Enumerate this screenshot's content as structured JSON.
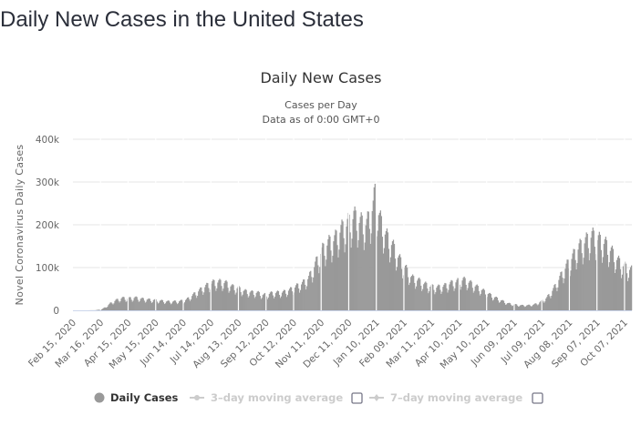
{
  "page": {
    "title": "Daily New Cases in the United States"
  },
  "chart_data": {
    "type": "bar",
    "title": "Daily New Cases",
    "subtitle_lines": [
      "Cases per Day",
      "Data as of 0:00 GMT+0"
    ],
    "xlabel": "",
    "ylabel": "Novel Coronavirus Daily Cases",
    "ylim": [
      0,
      400000
    ],
    "y_ticks": [
      {
        "value": 0,
        "label": "0"
      },
      {
        "value": 100000,
        "label": "100k"
      },
      {
        "value": 200000,
        "label": "200k"
      },
      {
        "value": 300000,
        "label": "300k"
      },
      {
        "value": 400000,
        "label": "400k"
      }
    ],
    "x_start": "2020-02-15",
    "x_end": "2021-10-14",
    "x_ticks": [
      {
        "date": "2020-02-15",
        "label": "Feb 15, 2020"
      },
      {
        "date": "2020-03-16",
        "label": "Mar 16, 2020"
      },
      {
        "date": "2020-04-15",
        "label": "Apr 15, 2020"
      },
      {
        "date": "2020-05-15",
        "label": "May 15, 2020"
      },
      {
        "date": "2020-06-14",
        "label": "Jun 14, 2020"
      },
      {
        "date": "2020-07-14",
        "label": "Jul 14, 2020"
      },
      {
        "date": "2020-08-13",
        "label": "Aug 13, 2020"
      },
      {
        "date": "2020-09-12",
        "label": "Sep 12, 2020"
      },
      {
        "date": "2020-10-12",
        "label": "Oct 12, 2020"
      },
      {
        "date": "2020-11-11",
        "label": "Nov 11, 2020"
      },
      {
        "date": "2020-12-11",
        "label": "Dec 11, 2020"
      },
      {
        "date": "2021-01-10",
        "label": "Jan 10, 2021"
      },
      {
        "date": "2021-02-09",
        "label": "Feb 09, 2021"
      },
      {
        "date": "2021-03-11",
        "label": "Mar 11, 2021"
      },
      {
        "date": "2021-04-10",
        "label": "Apr 10, 2021"
      },
      {
        "date": "2021-05-10",
        "label": "May 10, 2021"
      },
      {
        "date": "2021-06-09",
        "label": "Jun 09, 2021"
      },
      {
        "date": "2021-07-09",
        "label": "Jul 09, 2021"
      },
      {
        "date": "2021-08-08",
        "label": "Aug 08, 2021"
      },
      {
        "date": "2021-09-07",
        "label": "Sep 07, 2021"
      },
      {
        "date": "2021-10-07",
        "label": "Oct 07, 2021"
      }
    ],
    "grid": true,
    "bar_color": "#999999",
    "series": [
      {
        "name": "Daily Cases",
        "visible": true,
        "sampling": "weekly approximate daily-case level (peak of week)",
        "points": [
          [
            "2020-02-15",
            0
          ],
          [
            "2020-03-01",
            20
          ],
          [
            "2020-03-10",
            300
          ],
          [
            "2020-03-17",
            3000
          ],
          [
            "2020-03-22",
            10000
          ],
          [
            "2020-03-26",
            18000
          ],
          [
            "2020-04-01",
            26000
          ],
          [
            "2020-04-08",
            32000
          ],
          [
            "2020-04-15",
            31000
          ],
          [
            "2020-04-22",
            33000
          ],
          [
            "2020-04-29",
            30000
          ],
          [
            "2020-05-06",
            28000
          ],
          [
            "2020-05-13",
            27000
          ],
          [
            "2020-05-20",
            25000
          ],
          [
            "2020-05-27",
            23000
          ],
          [
            "2020-06-03",
            23000
          ],
          [
            "2020-06-10",
            24000
          ],
          [
            "2020-06-17",
            28000
          ],
          [
            "2020-06-24",
            40000
          ],
          [
            "2020-07-01",
            52000
          ],
          [
            "2020-07-08",
            63000
          ],
          [
            "2020-07-15",
            72000
          ],
          [
            "2020-07-22",
            74000
          ],
          [
            "2020-07-29",
            72000
          ],
          [
            "2020-08-05",
            62000
          ],
          [
            "2020-08-12",
            58000
          ],
          [
            "2020-08-19",
            50000
          ],
          [
            "2020-08-26",
            47000
          ],
          [
            "2020-09-02",
            46000
          ],
          [
            "2020-09-09",
            40000
          ],
          [
            "2020-09-16",
            44000
          ],
          [
            "2020-09-23",
            46000
          ],
          [
            "2020-09-30",
            47000
          ],
          [
            "2020-10-07",
            53000
          ],
          [
            "2020-10-14",
            62000
          ],
          [
            "2020-10-21",
            70000
          ],
          [
            "2020-10-28",
            85000
          ],
          [
            "2020-11-04",
            120000
          ],
          [
            "2020-11-11",
            155000
          ],
          [
            "2020-11-18",
            175000
          ],
          [
            "2020-11-25",
            185000
          ],
          [
            "2020-12-02",
            210000
          ],
          [
            "2020-12-09",
            225000
          ],
          [
            "2020-12-16",
            245000
          ],
          [
            "2020-12-23",
            230000
          ],
          [
            "2020-12-30",
            225000
          ],
          [
            "2021-01-06",
            270000
          ],
          [
            "2021-01-08",
            305000
          ],
          [
            "2021-01-13",
            240000
          ],
          [
            "2021-01-20",
            195000
          ],
          [
            "2021-01-27",
            170000
          ],
          [
            "2021-02-03",
            135000
          ],
          [
            "2021-02-10",
            110000
          ],
          [
            "2021-02-17",
            85000
          ],
          [
            "2021-02-24",
            78000
          ],
          [
            "2021-03-03",
            68000
          ],
          [
            "2021-03-10",
            62000
          ],
          [
            "2021-03-17",
            60000
          ],
          [
            "2021-03-24",
            63000
          ],
          [
            "2021-03-31",
            70000
          ],
          [
            "2021-04-07",
            75000
          ],
          [
            "2021-04-14",
            80000
          ],
          [
            "2021-04-21",
            72000
          ],
          [
            "2021-04-28",
            62000
          ],
          [
            "2021-05-05",
            52000
          ],
          [
            "2021-05-12",
            42000
          ],
          [
            "2021-05-19",
            33000
          ],
          [
            "2021-05-26",
            25000
          ],
          [
            "2021-06-02",
            18000
          ],
          [
            "2021-06-09",
            15000
          ],
          [
            "2021-06-16",
            13000
          ],
          [
            "2021-06-23",
            13000
          ],
          [
            "2021-06-30",
            15000
          ],
          [
            "2021-07-07",
            22000
          ],
          [
            "2021-07-14",
            33000
          ],
          [
            "2021-07-21",
            55000
          ],
          [
            "2021-07-28",
            85000
          ],
          [
            "2021-08-04",
            115000
          ],
          [
            "2021-08-11",
            140000
          ],
          [
            "2021-08-18",
            165000
          ],
          [
            "2021-08-25",
            180000
          ],
          [
            "2021-09-01",
            195000
          ],
          [
            "2021-09-08",
            185000
          ],
          [
            "2021-09-15",
            175000
          ],
          [
            "2021-09-22",
            155000
          ],
          [
            "2021-09-29",
            130000
          ],
          [
            "2021-10-06",
            115000
          ],
          [
            "2021-10-14",
            105000
          ]
        ]
      },
      {
        "name": "3-day moving average",
        "visible": false
      },
      {
        "name": "7-day moving average",
        "visible": false
      }
    ],
    "legend": {
      "placement": "bottom-center",
      "items": [
        {
          "label": "Daily Cases",
          "marker": "circle",
          "active": true
        },
        {
          "label": "3–day moving average",
          "marker": "line-diamond",
          "active": false,
          "checkbox": false
        },
        {
          "label": "7–day moving average",
          "marker": "line-diamond",
          "active": false,
          "checkbox": false
        }
      ]
    }
  }
}
